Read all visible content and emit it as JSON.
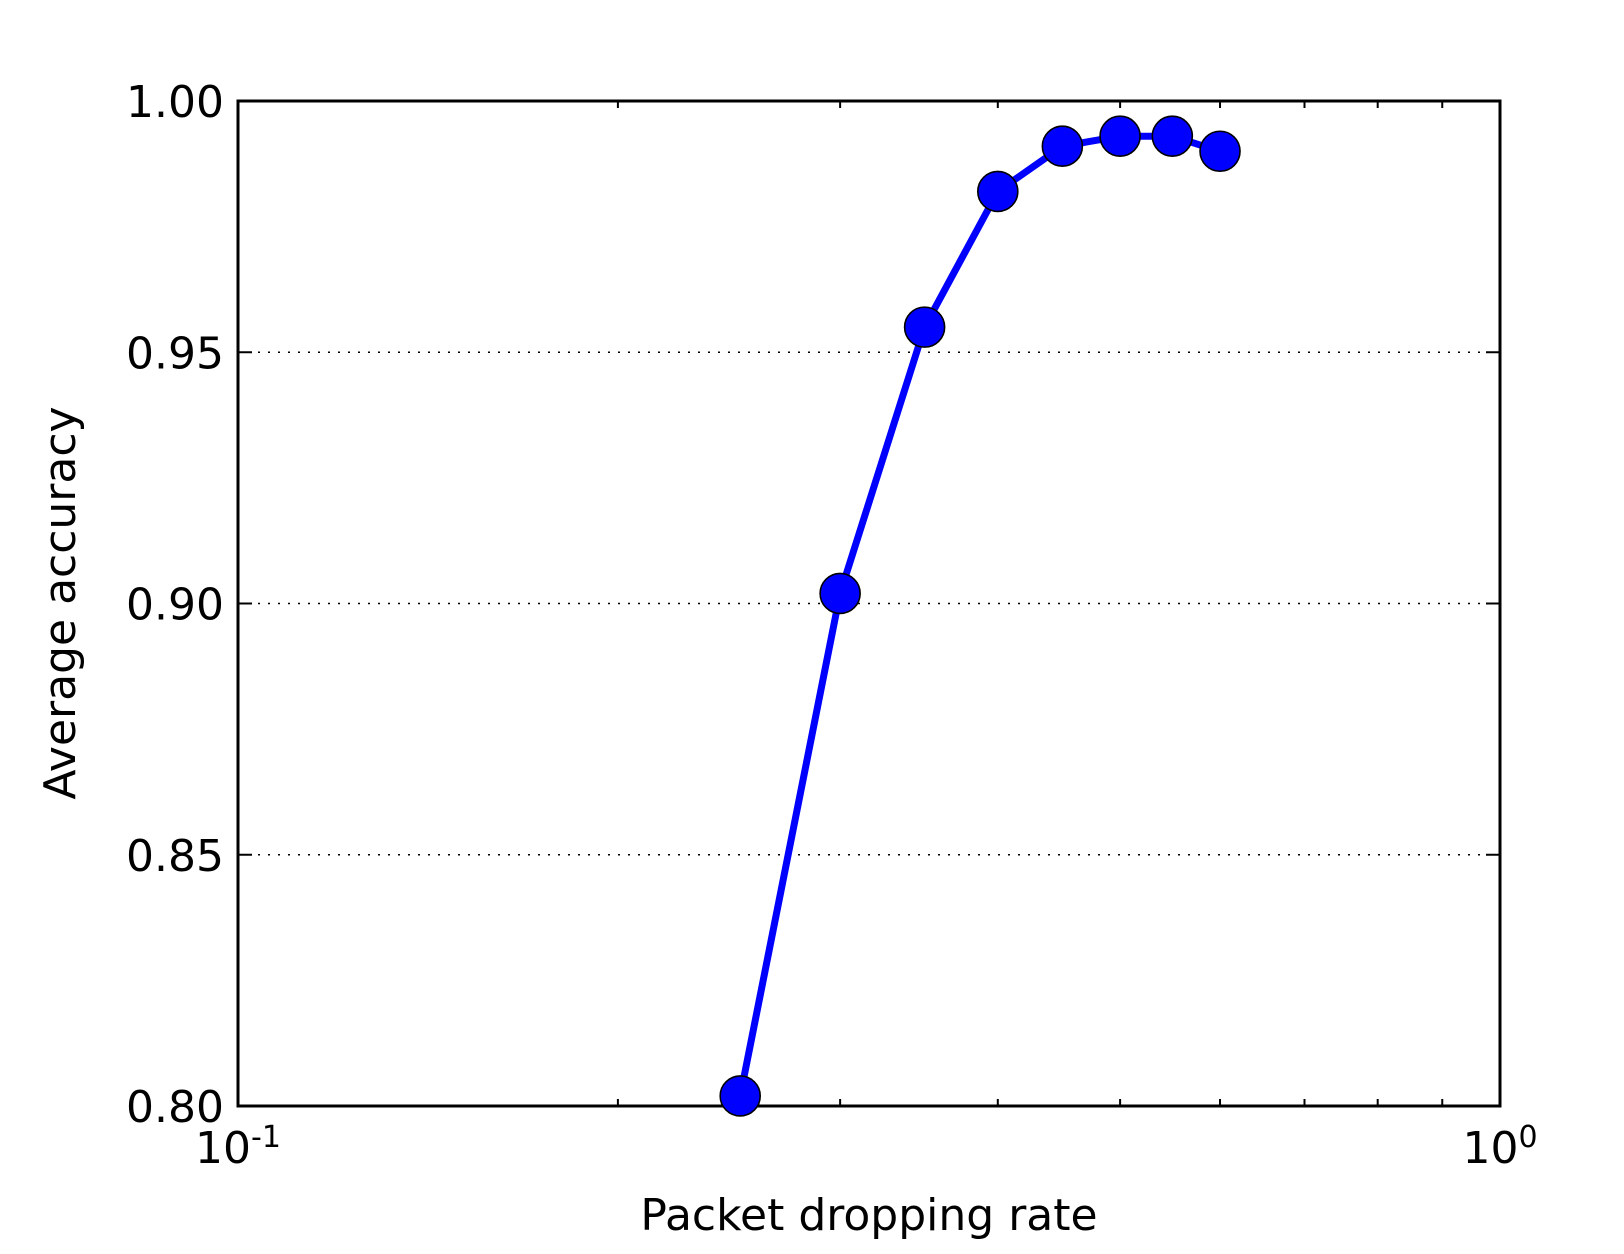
{
  "chart_data": {
    "type": "line",
    "xlabel": "Packet dropping rate",
    "ylabel": "Average accuracy",
    "xscale": "log",
    "xlim": [
      0.1,
      1.0
    ],
    "ylim": [
      0.8,
      1.0
    ],
    "x_ticks": [
      {
        "value": 0.1,
        "base": "10",
        "exp": "-1"
      },
      {
        "value": 1.0,
        "base": "10",
        "exp": "0"
      }
    ],
    "y_ticks": [
      {
        "value": 0.8,
        "label": "0.80"
      },
      {
        "value": 0.85,
        "label": "0.85"
      },
      {
        "value": 0.9,
        "label": "0.90"
      },
      {
        "value": 0.95,
        "label": "0.95"
      },
      {
        "value": 1.0,
        "label": "1.00"
      }
    ],
    "grid": {
      "y": true,
      "style": "dotted"
    },
    "series": [
      {
        "color": "#0000ff",
        "x": [
          0.25,
          0.3,
          0.35,
          0.4,
          0.45,
          0.5,
          0.55,
          0.6
        ],
        "y": [
          0.802,
          0.902,
          0.955,
          0.982,
          0.991,
          0.993,
          0.993,
          0.99
        ]
      }
    ]
  }
}
